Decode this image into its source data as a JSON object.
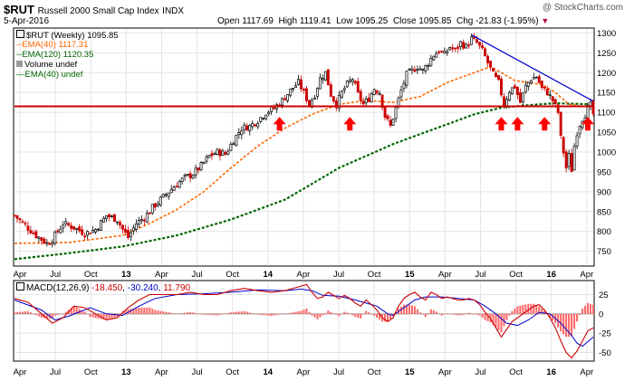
{
  "header": {
    "symbol": "$RUT",
    "name": "Russell 2000 Small Cap Index",
    "exchange": "INDX",
    "watermark": "@ StockCharts.com",
    "date": "5-Apr-2016",
    "open_label": "Open",
    "open": "1117.69",
    "high_label": "High",
    "high": "1119.41",
    "low_label": "Low",
    "low": "1095.25",
    "close_label": "Close",
    "close": "1095.85",
    "chg_label": "Chg",
    "chg": "-21.83 (-1.95%)",
    "chg_arrow": "▼"
  },
  "legend": {
    "price": "$RUT (Weekly) 1095.85",
    "ema40": "EMA(40) 1117.31",
    "ema120": "EMA(120) 1120.35",
    "volume": "Volume undef",
    "ema40_vol": "EMA(40) undef"
  },
  "macd_legend": {
    "label": "MACD(12,26,9)",
    "macd": "-18.450",
    "signal": "-30.240",
    "hist": "11.790"
  },
  "colors": {
    "up": "#000000",
    "down": "#cc0000",
    "ema40": "#ff6600",
    "ema120": "#006600",
    "trendline": "#0000cc",
    "support": "#cc0000",
    "arrow": "#ff0000",
    "macd": "#cc0000",
    "signal": "#0000cc",
    "histogram": "#ff6666"
  },
  "chart_data": [
    {
      "type": "candlestick",
      "title": "$RUT Russell 2000 Small Cap Index (Weekly)",
      "x_labels": [
        "Apr",
        "Jul",
        "Oct",
        "13",
        "Apr",
        "Jul",
        "Oct",
        "14",
        "Apr",
        "Jul",
        "Oct",
        "15",
        "Apr",
        "Jul",
        "Oct",
        "16",
        "Apr"
      ],
      "y_ticks": [
        750,
        800,
        850,
        900,
        950,
        1000,
        1050,
        1100,
        1150,
        1200,
        1250,
        1300
      ],
      "ylim": [
        715,
        1310
      ],
      "close_path": [
        [
          0,
          840
        ],
        [
          4,
          815
        ],
        [
          8,
          790
        ],
        [
          12,
          770
        ],
        [
          14,
          780
        ],
        [
          18,
          820
        ],
        [
          22,
          810
        ],
        [
          26,
          795
        ],
        [
          30,
          805
        ],
        [
          34,
          840
        ],
        [
          38,
          830
        ],
        [
          40,
          805
        ],
        [
          42,
          785
        ],
        [
          45,
          820
        ],
        [
          48,
          835
        ],
        [
          51,
          860
        ],
        [
          54,
          880
        ],
        [
          57,
          900
        ],
        [
          60,
          920
        ],
        [
          63,
          935
        ],
        [
          66,
          945
        ],
        [
          69,
          965
        ],
        [
          72,
          990
        ],
        [
          75,
          1000
        ],
        [
          78,
          995
        ],
        [
          81,
          1030
        ],
        [
          84,
          1060
        ],
        [
          87,
          1065
        ],
        [
          90,
          1080
        ],
        [
          93,
          1100
        ],
        [
          96,
          1110
        ],
        [
          99,
          1130
        ],
        [
          102,
          1155
        ],
        [
          105,
          1175
        ],
        [
          107,
          1150
        ],
        [
          109,
          1120
        ],
        [
          111,
          1145
        ],
        [
          113,
          1185
        ],
        [
          115,
          1200
        ],
        [
          117,
          1145
        ],
        [
          119,
          1120
        ],
        [
          121,
          1150
        ],
        [
          123,
          1170
        ],
        [
          125,
          1185
        ],
        [
          127,
          1145
        ],
        [
          129,
          1120
        ],
        [
          131,
          1135
        ],
        [
          133,
          1160
        ],
        [
          135,
          1150
        ],
        [
          137,
          1090
        ],
        [
          139,
          1065
        ],
        [
          141,
          1110
        ],
        [
          143,
          1155
        ],
        [
          145,
          1195
        ],
        [
          147,
          1205
        ],
        [
          149,
          1215
        ],
        [
          151,
          1205
        ],
        [
          153,
          1225
        ],
        [
          155,
          1245
        ],
        [
          157,
          1255
        ],
        [
          159,
          1245
        ],
        [
          161,
          1265
        ],
        [
          163,
          1255
        ],
        [
          165,
          1275
        ],
        [
          167,
          1265
        ],
        [
          169,
          1285
        ],
        [
          171,
          1275
        ],
        [
          173,
          1255
        ],
        [
          175,
          1225
        ],
        [
          177,
          1195
        ],
        [
          179,
          1175
        ],
        [
          181,
          1120
        ],
        [
          183,
          1155
        ],
        [
          185,
          1165
        ],
        [
          187,
          1125
        ],
        [
          189,
          1165
        ],
        [
          191,
          1185
        ],
        [
          193,
          1190
        ],
        [
          195,
          1160
        ],
        [
          197,
          1150
        ],
        [
          199,
          1130
        ],
        [
          201,
          1100
        ],
        [
          202,
          1035
        ],
        [
          203,
          1000
        ],
        [
          204,
          960
        ],
        [
          205,
          990
        ],
        [
          206,
          955
        ],
        [
          207,
          1015
        ],
        [
          208,
          1050
        ],
        [
          209,
          1070
        ],
        [
          210,
          1085
        ],
        [
          211,
          1095
        ],
        [
          212,
          1110
        ],
        [
          213,
          1117
        ],
        [
          214,
          1096
        ]
      ],
      "ema40_path": [
        [
          0,
          770
        ],
        [
          20,
          772
        ],
        [
          40,
          790
        ],
        [
          50,
          820
        ],
        [
          60,
          855
        ],
        [
          70,
          900
        ],
        [
          80,
          960
        ],
        [
          90,
          1015
        ],
        [
          100,
          1060
        ],
        [
          110,
          1095
        ],
        [
          120,
          1120
        ],
        [
          130,
          1130
        ],
        [
          140,
          1125
        ],
        [
          150,
          1140
        ],
        [
          160,
          1175
        ],
        [
          170,
          1200
        ],
        [
          176,
          1215
        ],
        [
          180,
          1200
        ],
        [
          185,
          1180
        ],
        [
          190,
          1175
        ],
        [
          195,
          1170
        ],
        [
          200,
          1150
        ],
        [
          205,
          1120
        ],
        [
          210,
          1115
        ],
        [
          214,
          1117
        ]
      ],
      "ema120_path": [
        [
          0,
          730
        ],
        [
          20,
          745
        ],
        [
          40,
          762
        ],
        [
          60,
          790
        ],
        [
          80,
          830
        ],
        [
          100,
          880
        ],
        [
          110,
          920
        ],
        [
          120,
          960
        ],
        [
          130,
          990
        ],
        [
          140,
          1020
        ],
        [
          150,
          1045
        ],
        [
          160,
          1070
        ],
        [
          170,
          1095
        ],
        [
          180,
          1112
        ],
        [
          190,
          1118
        ],
        [
          200,
          1123
        ],
        [
          214,
          1120
        ]
      ],
      "support_line": 1115,
      "trendline": [
        [
          169,
          1295
        ],
        [
          214,
          1128
        ]
      ],
      "arrows_at": [
        [
          98,
          1095
        ],
        [
          124,
          1095
        ],
        [
          180,
          1095
        ],
        [
          186,
          1095
        ],
        [
          196,
          1095
        ],
        [
          212,
          1095
        ]
      ]
    },
    {
      "type": "line",
      "title": "MACD(12,26,9)",
      "y_ticks": [
        -50,
        -25,
        0,
        25
      ],
      "ylim": [
        -60,
        42
      ],
      "macd_path": [
        [
          0,
          20
        ],
        [
          5,
          15
        ],
        [
          10,
          0
        ],
        [
          14,
          -12
        ],
        [
          18,
          -5
        ],
        [
          22,
          10
        ],
        [
          26,
          8
        ],
        [
          30,
          0
        ],
        [
          34,
          -8
        ],
        [
          38,
          -5
        ],
        [
          42,
          8
        ],
        [
          46,
          18
        ],
        [
          50,
          25
        ],
        [
          55,
          25
        ],
        [
          60,
          25
        ],
        [
          65,
          28
        ],
        [
          70,
          25
        ],
        [
          75,
          25
        ],
        [
          80,
          30
        ],
        [
          85,
          33
        ],
        [
          90,
          30
        ],
        [
          95,
          28
        ],
        [
          100,
          30
        ],
        [
          105,
          35
        ],
        [
          108,
          38
        ],
        [
          110,
          28
        ],
        [
          112,
          20
        ],
        [
          114,
          22
        ],
        [
          116,
          28
        ],
        [
          118,
          24
        ],
        [
          120,
          20
        ],
        [
          122,
          24
        ],
        [
          124,
          20
        ],
        [
          126,
          14
        ],
        [
          128,
          10
        ],
        [
          130,
          18
        ],
        [
          132,
          12
        ],
        [
          134,
          5
        ],
        [
          136,
          -5
        ],
        [
          138,
          -10
        ],
        [
          140,
          -5
        ],
        [
          142,
          10
        ],
        [
          144,
          20
        ],
        [
          146,
          25
        ],
        [
          148,
          28
        ],
        [
          150,
          22
        ],
        [
          152,
          18
        ],
        [
          154,
          28
        ],
        [
          156,
          25
        ],
        [
          158,
          20
        ],
        [
          160,
          22
        ],
        [
          162,
          20
        ],
        [
          164,
          18
        ],
        [
          166,
          18
        ],
        [
          168,
          20
        ],
        [
          170,
          18
        ],
        [
          172,
          12
        ],
        [
          174,
          2
        ],
        [
          176,
          -6
        ],
        [
          178,
          -18
        ],
        [
          180,
          -30
        ],
        [
          182,
          -20
        ],
        [
          184,
          -10
        ],
        [
          186,
          -5
        ],
        [
          188,
          0
        ],
        [
          190,
          5
        ],
        [
          192,
          10
        ],
        [
          194,
          12
        ],
        [
          196,
          5
        ],
        [
          198,
          -5
        ],
        [
          200,
          -18
        ],
        [
          202,
          -35
        ],
        [
          204,
          -50
        ],
        [
          206,
          -57
        ],
        [
          208,
          -48
        ],
        [
          210,
          -35
        ],
        [
          212,
          -22
        ],
        [
          214,
          -18
        ]
      ],
      "signal_path": [
        [
          0,
          18
        ],
        [
          10,
          5
        ],
        [
          15,
          -8
        ],
        [
          20,
          -3
        ],
        [
          28,
          8
        ],
        [
          34,
          0
        ],
        [
          40,
          -2
        ],
        [
          46,
          10
        ],
        [
          52,
          20
        ],
        [
          60,
          25
        ],
        [
          70,
          26
        ],
        [
          80,
          28
        ],
        [
          90,
          31
        ],
        [
          100,
          30
        ],
        [
          106,
          32
        ],
        [
          110,
          30
        ],
        [
          114,
          24
        ],
        [
          120,
          23
        ],
        [
          126,
          18
        ],
        [
          130,
          14
        ],
        [
          134,
          10
        ],
        [
          138,
          0
        ],
        [
          140,
          -2
        ],
        [
          144,
          8
        ],
        [
          148,
          18
        ],
        [
          152,
          22
        ],
        [
          158,
          22
        ],
        [
          164,
          20
        ],
        [
          170,
          18
        ],
        [
          174,
          10
        ],
        [
          178,
          0
        ],
        [
          182,
          -12
        ],
        [
          186,
          -15
        ],
        [
          190,
          -8
        ],
        [
          194,
          2
        ],
        [
          198,
          0
        ],
        [
          202,
          -12
        ],
        [
          206,
          -28
        ],
        [
          208,
          -38
        ],
        [
          210,
          -42
        ],
        [
          212,
          -36
        ],
        [
          214,
          -30
        ]
      ]
    }
  ]
}
